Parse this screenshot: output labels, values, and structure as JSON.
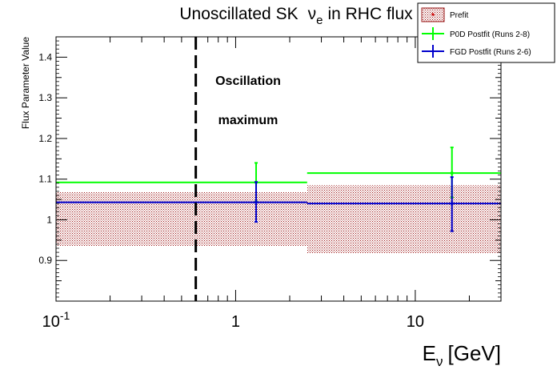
{
  "chart_data": {
    "type": "line",
    "title": {
      "prefix": "Unoscillated SK",
      "nu": "ν",
      "flavor": "e",
      "suffix": "in RHC flux"
    },
    "xlabel": {
      "main": "E",
      "sub": "ν",
      "unit": "[GeV]"
    },
    "ylabel": "Flux Parameter Value",
    "xscale": "log",
    "xlim": [
      0.1,
      30
    ],
    "ylim": [
      0.8,
      1.45
    ],
    "x_tick_labels": [
      {
        "value": 0.1,
        "base": "10",
        "exp": "-1"
      },
      {
        "value": 1,
        "base": "1",
        "exp": ""
      },
      {
        "value": 10,
        "base": "10",
        "exp": ""
      }
    ],
    "y_ticks": [
      0.9,
      1.0,
      1.1,
      1.2,
      1.3,
      1.4
    ],
    "y_tick_labels": [
      "0.9",
      "1",
      "1.1",
      "1.2",
      "1.3",
      "1.4"
    ],
    "bins": [
      {
        "low": 0.1,
        "high": 2.5,
        "center": 1.3
      },
      {
        "low": 2.5,
        "high": 30,
        "center": 16
      }
    ],
    "series": [
      {
        "name": "Prefit",
        "style": "band",
        "color": "#a01818",
        "values": [
          1.0,
          1.0
        ],
        "band_low": [
          0.935,
          0.918
        ],
        "band_high": [
          1.068,
          1.085
        ]
      },
      {
        "name": "P0D Postfit (Runs 2-8)",
        "style": "errorbar",
        "color": "#00ff00",
        "values": [
          1.092,
          1.115
        ],
        "err_low": [
          1.045,
          1.055
        ],
        "err_high": [
          1.14,
          1.178
        ]
      },
      {
        "name": "FGD Postfit (Runs 2-6)",
        "style": "errorbar",
        "color": "#0000cc",
        "values": [
          1.043,
          1.04
        ],
        "err_low": [
          0.995,
          0.972
        ],
        "err_high": [
          1.093,
          1.105
        ]
      }
    ],
    "vline": {
      "x": 0.6,
      "style": "dashed",
      "color": "#000000"
    },
    "annotations": [
      "Oscillation",
      "maximum"
    ],
    "legend_position": "top-right",
    "grid": false
  }
}
